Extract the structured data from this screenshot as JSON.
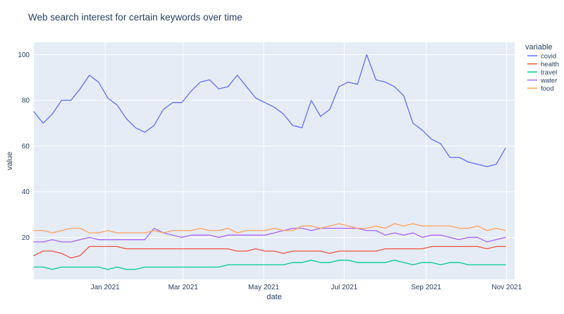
{
  "chart_data": {
    "type": "line",
    "title": "Web search interest for certain keywords over time",
    "xlabel": "date",
    "ylabel": "value",
    "legend_title": "variable",
    "legend_position": "top-right",
    "grid": true,
    "x_start": "2020-11-08",
    "x_step_days": 7,
    "x_range": [
      "2020-11-08",
      "2021-11-07"
    ],
    "ylim": [
      1.6,
      105.4
    ],
    "y_ticks": [
      20,
      40,
      60,
      80,
      100
    ],
    "x_ticks": [
      {
        "label": "Jan 2021",
        "date": "2021-01-01"
      },
      {
        "label": "Mar 2021",
        "date": "2021-03-01"
      },
      {
        "label": "May 2021",
        "date": "2021-05-01"
      },
      {
        "label": "Jul 2021",
        "date": "2021-07-01"
      },
      {
        "label": "Sep 2021",
        "date": "2021-09-01"
      },
      {
        "label": "Nov 2021",
        "date": "2021-11-01"
      }
    ],
    "series": [
      {
        "name": "covid",
        "color": "#636efa",
        "values": [
          75,
          70,
          74,
          80,
          80,
          85,
          91,
          88,
          81,
          78,
          72,
          68,
          66,
          69,
          76,
          79,
          79,
          84,
          88,
          89,
          85,
          86,
          91,
          86,
          81,
          79,
          77,
          74,
          69,
          68,
          80,
          73,
          76,
          86,
          88,
          87,
          100,
          89,
          88,
          86,
          82,
          70,
          67,
          63,
          61,
          55,
          55,
          53,
          52,
          51,
          52,
          59
        ]
      },
      {
        "name": "health",
        "color": "#EF553B",
        "values": [
          12,
          14,
          14,
          13,
          11,
          12,
          16,
          16,
          16,
          16,
          15,
          15,
          15,
          15,
          15,
          15,
          15,
          15,
          15,
          15,
          15,
          15,
          14,
          14,
          15,
          14,
          14,
          13,
          14,
          14,
          14,
          14,
          13,
          14,
          14,
          14,
          14,
          14,
          15,
          15,
          15,
          15,
          15,
          16,
          16,
          16,
          16,
          16,
          16,
          15,
          16,
          16
        ]
      },
      {
        "name": "travel",
        "color": "#00cc96",
        "values": [
          7,
          7,
          6,
          7,
          7,
          7,
          7,
          7,
          6,
          7,
          6,
          6,
          7,
          7,
          7,
          7,
          7,
          7,
          7,
          7,
          7,
          8,
          8,
          8,
          8,
          8,
          8,
          8,
          9,
          9,
          10,
          9,
          9,
          10,
          10,
          9,
          9,
          9,
          9,
          10,
          9,
          8,
          9,
          9,
          8,
          9,
          9,
          8,
          8,
          8,
          8,
          8
        ]
      },
      {
        "name": "water",
        "color": "#ab63fa",
        "values": [
          18,
          18,
          19,
          18,
          18,
          19,
          20,
          19,
          19,
          19,
          19,
          19,
          19,
          24,
          22,
          21,
          20,
          21,
          21,
          21,
          20,
          21,
          21,
          21,
          21,
          21,
          22,
          23,
          24,
          24,
          23,
          24,
          24,
          24,
          24,
          24,
          23,
          23,
          21,
          22,
          21,
          22,
          20,
          21,
          21,
          20,
          19,
          20,
          20,
          18,
          19,
          20
        ]
      },
      {
        "name": "food",
        "color": "#FFA15A",
        "values": [
          23,
          23,
          22,
          23,
          24,
          24,
          22,
          22,
          23,
          22,
          22,
          22,
          22,
          23,
          22,
          23,
          23,
          23,
          24,
          23,
          23,
          24,
          22,
          23,
          23,
          23,
          24,
          23,
          23,
          25,
          25,
          24,
          25,
          26,
          25,
          24,
          24,
          25,
          24,
          26,
          25,
          26,
          25,
          25,
          25,
          25,
          24,
          24,
          25,
          23,
          24,
          23
        ]
      }
    ]
  }
}
